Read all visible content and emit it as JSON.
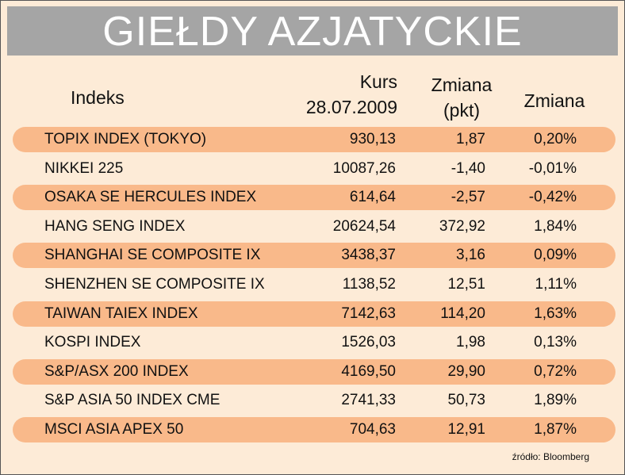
{
  "header": {
    "title": "GIEŁDY AZJATYCKIE"
  },
  "table": {
    "headers": [
      [
        "Indeks"
      ],
      [
        "Kurs",
        "28.07.2009"
      ],
      [
        "Zmiana",
        "(pkt)"
      ],
      [
        "Zmiana"
      ]
    ],
    "rows": [
      [
        "TOPIX INDEX (TOKYO)",
        "930,13",
        "1,87",
        "0,20%"
      ],
      [
        "NIKKEI 225",
        "10087,26",
        "-1,40",
        "-0,01%"
      ],
      [
        "OSAKA SE HERCULES INDEX",
        "614,64",
        "-2,57",
        "-0,42%"
      ],
      [
        "HANG SENG INDEX",
        "20624,54",
        "372,92",
        "1,84%"
      ],
      [
        "SHANGHAI SE COMPOSITE IX",
        "3438,37",
        "3,16",
        "0,09%"
      ],
      [
        "SHENZHEN SE COMPOSITE IX",
        "1138,52",
        "12,51",
        "1,11%"
      ],
      [
        "TAIWAN TAIEX INDEX",
        "7142,63",
        "114,20",
        "1,63%"
      ],
      [
        "KOSPI INDEX",
        "1526,03",
        "1,98",
        "0,13%"
      ],
      [
        "S&P/ASX 200 INDEX",
        "4169,50",
        "29,90",
        "0,72%"
      ],
      [
        "S&P ASIA 50 INDEX CME",
        "2741,33",
        "50,73",
        "1,89%"
      ],
      [
        "MSCI ASIA APEX 50",
        "704,63",
        "12,91",
        "1,87%"
      ]
    ]
  },
  "source": "źródło: Bloomberg"
}
